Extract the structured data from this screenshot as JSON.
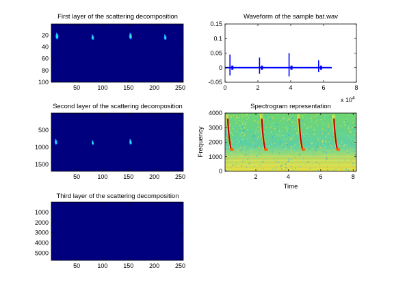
{
  "chart_data": [
    {
      "id": "layer1",
      "type": "heatmap",
      "title": "First layer of the scattering decomposition",
      "xlim": [
        1,
        256
      ],
      "ylim": [
        1,
        100
      ],
      "xticks": [
        50,
        100,
        150,
        200,
        250
      ],
      "yticks": [
        20,
        40,
        60,
        80,
        100
      ],
      "background_color": "#00007f",
      "blobs": [
        {
          "x": 12,
          "y": 22,
          "intensity": 0.7
        },
        {
          "x": 81,
          "y": 24,
          "intensity": 0.5
        },
        {
          "x": 154,
          "y": 22,
          "intensity": 0.7
        },
        {
          "x": 221,
          "y": 24,
          "intensity": 0.5
        }
      ]
    },
    {
      "id": "layer2",
      "type": "heatmap",
      "title": "Second layer of the scattering decomposition",
      "xlim": [
        1,
        256
      ],
      "ylim": [
        1,
        1700
      ],
      "xticks": [
        50,
        100,
        150,
        200,
        250
      ],
      "yticks": [
        500,
        1000,
        1500
      ],
      "background_color": "#00007f",
      "blobs": [
        {
          "x": 10,
          "y": 850,
          "intensity": 0.5
        },
        {
          "x": 81,
          "y": 870,
          "intensity": 0.3
        },
        {
          "x": 154,
          "y": 850,
          "intensity": 0.5
        }
      ]
    },
    {
      "id": "layer3",
      "type": "heatmap",
      "title": "Third layer of the scattering decomposition",
      "xlim": [
        1,
        256
      ],
      "ylim": [
        1,
        5700
      ],
      "xticks": [
        50,
        100,
        150,
        200,
        250
      ],
      "yticks": [
        1000,
        2000,
        3000,
        4000,
        5000
      ],
      "background_color": "#00007f",
      "blobs": []
    },
    {
      "id": "waveform",
      "type": "line",
      "title": "Waveform of the sample bat.wav",
      "xlim": [
        0,
        80000
      ],
      "ylim": [
        -0.05,
        0.15
      ],
      "xticks": [
        0,
        20000,
        40000,
        60000,
        80000
      ],
      "xtick_labels": [
        "0",
        "2",
        "4",
        "6",
        "8"
      ],
      "x_exponent_label": "x 10",
      "x_exponent_power": "4",
      "yticks": [
        -0.05,
        0,
        0.05,
        0.1,
        0.15
      ],
      "ytick_labels": [
        "-0.05",
        "0",
        "0.05",
        "0.1",
        "0.15"
      ],
      "signal_end": 65000,
      "color": "#0000ff",
      "bursts": [
        {
          "x": 3000,
          "amp": 0.045
        },
        {
          "x": 21000,
          "amp": 0.035
        },
        {
          "x": 39000,
          "amp": 0.05
        },
        {
          "x": 57000,
          "amp": 0.025
        }
      ]
    },
    {
      "id": "spectrogram",
      "type": "heatmap",
      "title": "Spectrogram representation",
      "xlabel": "Time",
      "ylabel": "Frequency",
      "xlim": [
        0.1,
        8.2
      ],
      "ylim": [
        0,
        4000
      ],
      "xticks": [
        2,
        4,
        6,
        8
      ],
      "yticks": [
        0,
        1000,
        2000,
        3000,
        4000
      ],
      "calls": [
        {
          "t": 0.35
        },
        {
          "t": 2.45
        },
        {
          "t": 4.75
        },
        {
          "t": 6.9
        }
      ]
    }
  ]
}
